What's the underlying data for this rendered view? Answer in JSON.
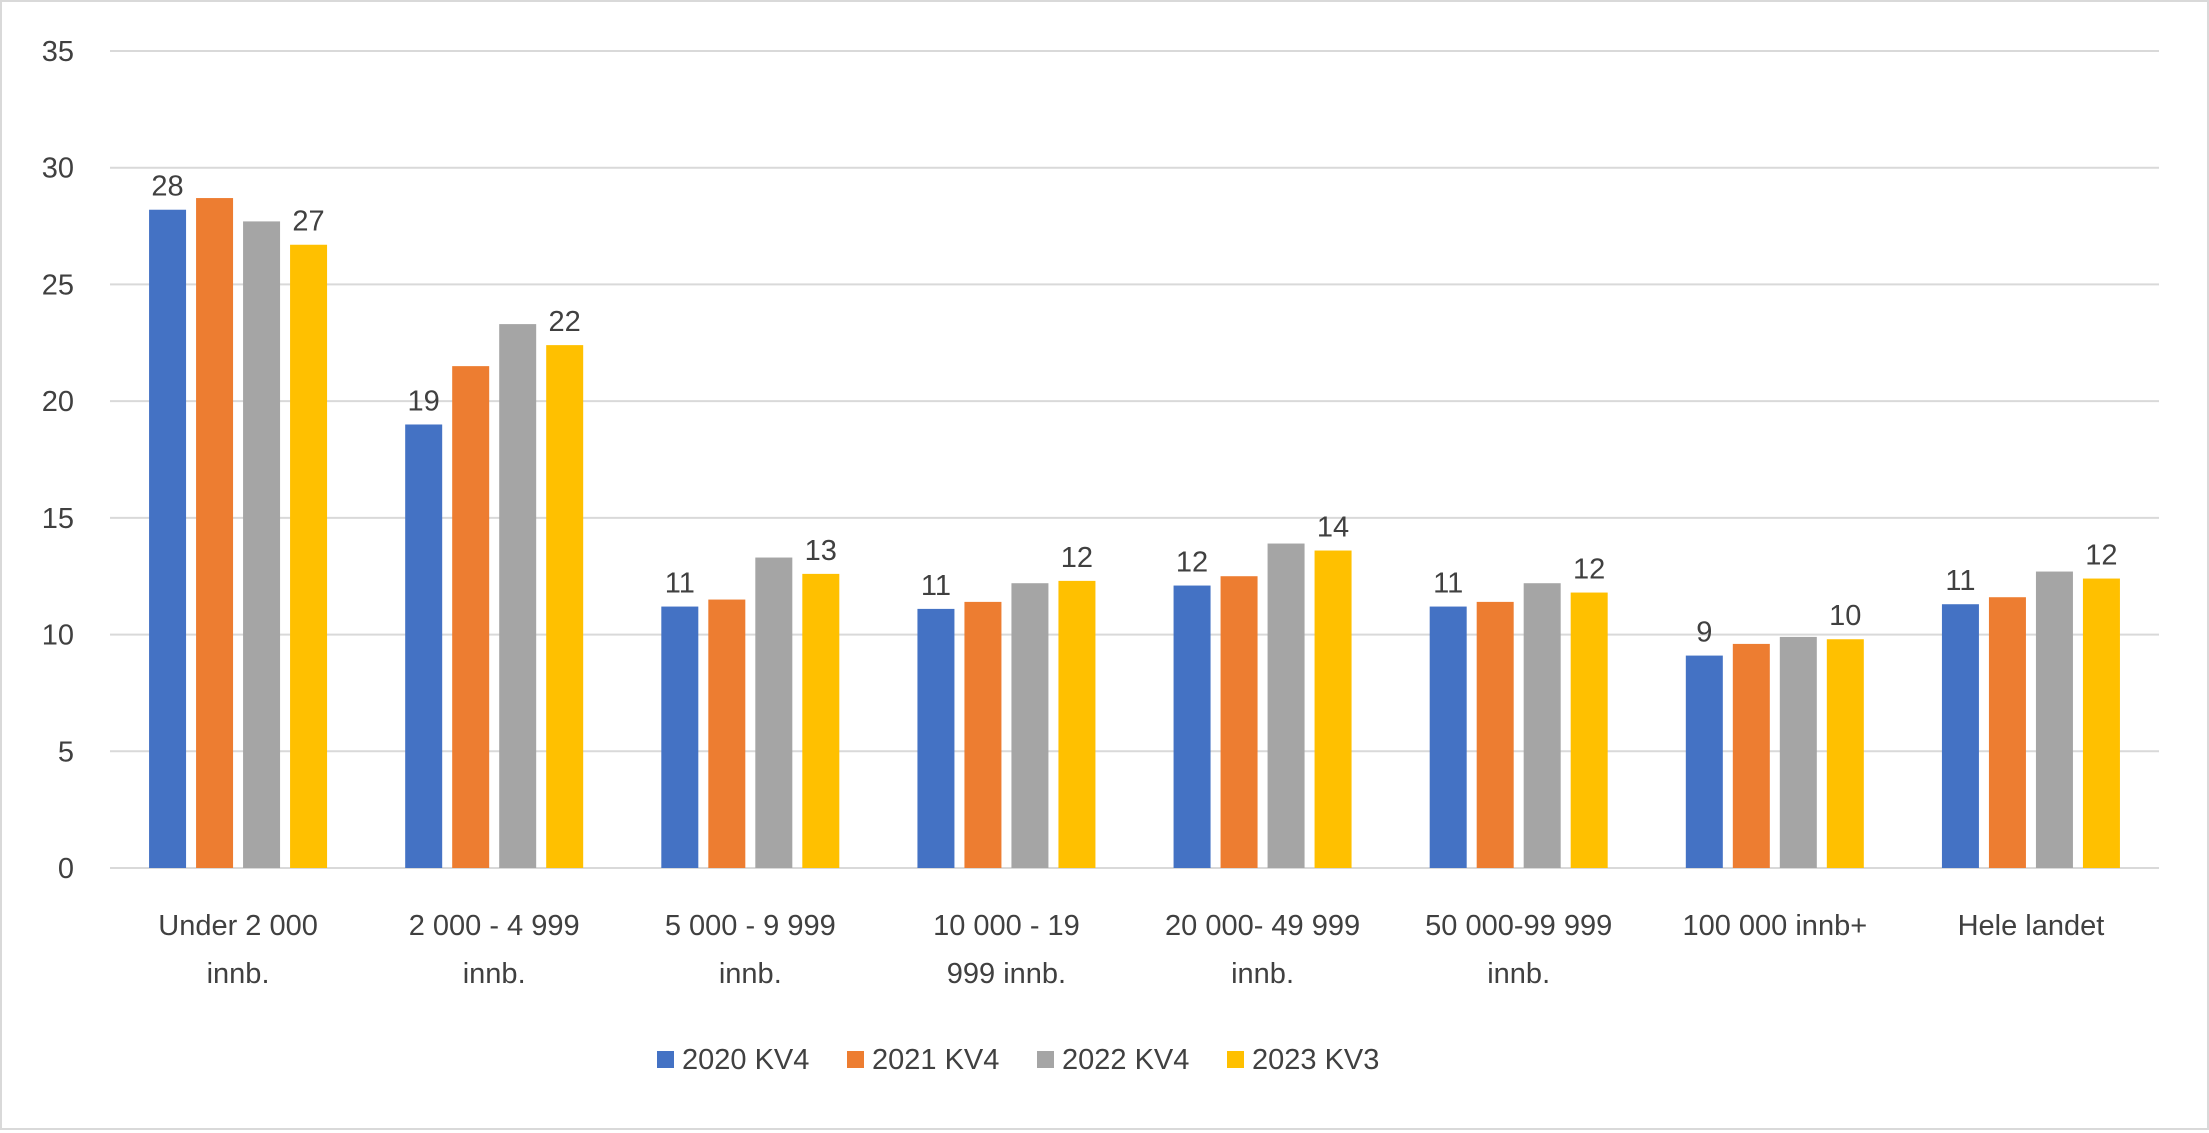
{
  "chart_data": {
    "type": "bar",
    "categories": [
      [
        "Under 2 000",
        "innb."
      ],
      [
        "2 000 - 4 999",
        "innb."
      ],
      [
        "5 000 - 9 999",
        "innb."
      ],
      [
        "10 000 - 19",
        "999 innb."
      ],
      [
        "20 000- 49 999",
        "innb."
      ],
      [
        "50 000-99 999",
        "innb."
      ],
      [
        "100 000 innb+"
      ],
      [
        "Hele landet"
      ]
    ],
    "series": [
      {
        "name": "2020 KV4",
        "color": "#4472c4",
        "values": [
          28.2,
          19.0,
          11.2,
          11.1,
          12.1,
          11.2,
          9.1,
          11.3
        ],
        "labels": [
          "28",
          "19",
          "11",
          "11",
          "12",
          "11",
          "9",
          "11"
        ]
      },
      {
        "name": "2021 KV4",
        "color": "#ed7d31",
        "values": [
          28.7,
          21.5,
          11.5,
          11.4,
          12.5,
          11.4,
          9.6,
          11.6
        ]
      },
      {
        "name": "2022 KV4",
        "color": "#a5a5a5",
        "values": [
          27.7,
          23.3,
          13.3,
          12.2,
          13.9,
          12.2,
          9.9,
          12.7
        ]
      },
      {
        "name": "2023 KV3",
        "color": "#ffc000",
        "values": [
          26.7,
          22.4,
          12.6,
          12.3,
          13.6,
          11.8,
          9.8,
          12.4
        ],
        "labels": [
          "27",
          "22",
          "13",
          "12",
          "14",
          "12",
          "10",
          "12"
        ]
      }
    ],
    "ylim": [
      0,
      35
    ],
    "yticks": [
      0,
      5,
      10,
      15,
      20,
      25,
      30,
      35
    ],
    "grid": true,
    "legend": "bottom",
    "title": "",
    "xlabel": "",
    "ylabel": ""
  }
}
